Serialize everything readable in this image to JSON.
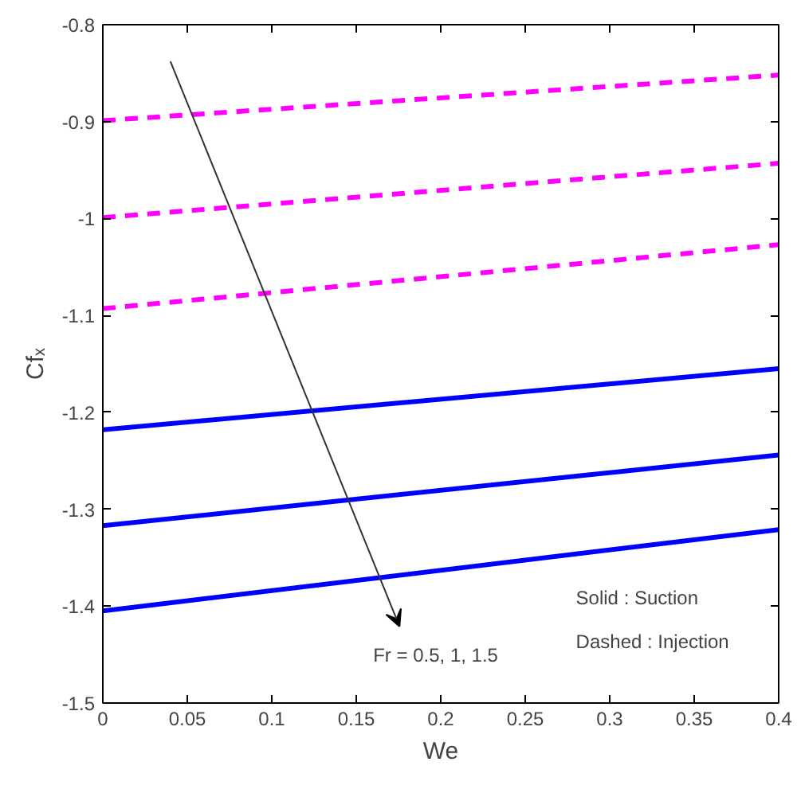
{
  "chart_data": {
    "type": "line",
    "xlabel": "We",
    "ylabel": "Cfₓ",
    "x": [
      0,
      0.4
    ],
    "series": [
      {
        "color": "#ff00ff",
        "line_style": "dashed",
        "values": [
          -0.899,
          -0.852
        ]
      },
      {
        "color": "#ff00ff",
        "line_style": "dashed",
        "values": [
          -0.999,
          -0.943
        ]
      },
      {
        "color": "#ff00ff",
        "line_style": "dashed",
        "values": [
          -1.093,
          -1.027
        ]
      },
      {
        "color": "#0000ff",
        "line_style": "solid",
        "values": [
          -1.218,
          -1.155
        ]
      },
      {
        "color": "#0000ff",
        "line_style": "solid",
        "values": [
          -1.317,
          -1.244
        ]
      },
      {
        "color": "#0000ff",
        "line_style": "solid",
        "values": [
          -1.405,
          -1.321
        ]
      }
    ],
    "xlim": [
      0,
      0.4
    ],
    "ylim": [
      -1.5,
      -0.8
    ],
    "xticks": [
      0,
      0.05,
      0.1,
      0.15,
      0.2,
      0.25,
      0.3,
      0.35,
      0.4
    ],
    "yticks": [
      -1.5,
      -1.4,
      -1.3,
      -1.2,
      -1.1,
      -1,
      -0.9,
      -0.8
    ],
    "grid": false,
    "annotations": [
      "Fr = 0.5, 1, 1.5",
      "Solid : Suction",
      "Dashed : Injection"
    ]
  }
}
